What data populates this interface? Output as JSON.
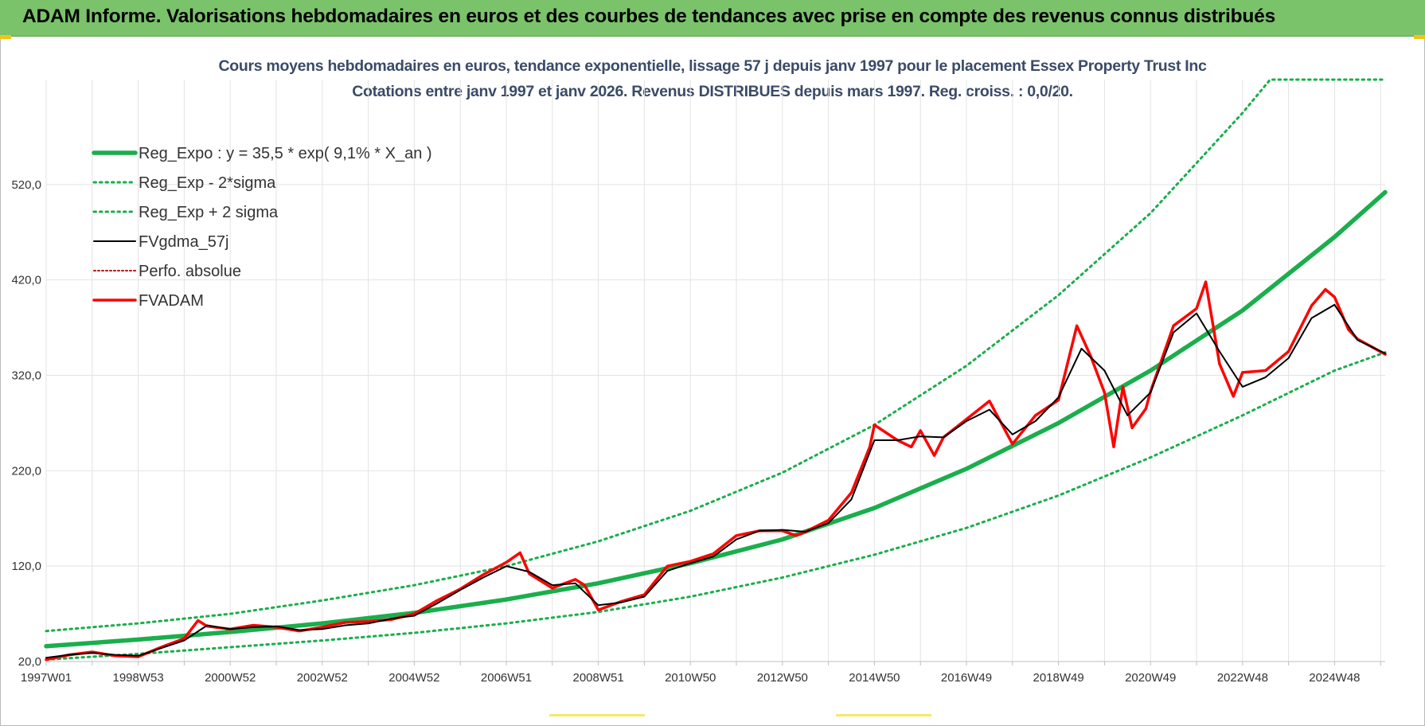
{
  "header": {
    "title": "ADAM Informe. Valorisations hebdomadaires en euros et des courbes de tendances avec prise en compte des revenus connus distribués"
  },
  "colors": {
    "header_bg": "#7ac36a",
    "reg_green": "#1aae4c",
    "sigma_green": "#1aae4c",
    "fvgdma": "#000000",
    "perfo": "#c00000",
    "fvadam": "#ff0000",
    "grid": "#e3e3e3"
  },
  "chart_data": {
    "type": "line",
    "title_line1": "Cours moyens hebdomadaires en euros, tendance exponentielle, lissage 57 j depuis janv 1997 pour le placement Essex Property Trust Inc",
    "title_line2": "Cotations entre janv 1997 et janv 2026. Revenus DISTRIBUES depuis mars 1997.  Reg. croiss. : 0,0/20.",
    "xlim": [
      1997.0,
      2026.1
    ],
    "ylim": [
      20,
      630
    ],
    "grid": true,
    "legend_position": "top-left",
    "y_ticks": [
      {
        "value": 20,
        "label": "20,0"
      },
      {
        "value": 120,
        "label": "120,0"
      },
      {
        "value": 220,
        "label": "220,0"
      },
      {
        "value": 320,
        "label": "320,0"
      },
      {
        "value": 420,
        "label": "420,0"
      },
      {
        "value": 520,
        "label": "520,0"
      }
    ],
    "x_ticks": [
      {
        "value": 1997.0,
        "label": "1997W01"
      },
      {
        "value": 1999.0,
        "label": "1998W53"
      },
      {
        "value": 2001.0,
        "label": "2000W52"
      },
      {
        "value": 2003.0,
        "label": "2002W52"
      },
      {
        "value": 2005.0,
        "label": "2004W52"
      },
      {
        "value": 2007.0,
        "label": "2006W51"
      },
      {
        "value": 2009.0,
        "label": "2008W51"
      },
      {
        "value": 2011.0,
        "label": "2010W50"
      },
      {
        "value": 2013.0,
        "label": "2012W50"
      },
      {
        "value": 2015.0,
        "label": "2014W50"
      },
      {
        "value": 2017.0,
        "label": "2016W49"
      },
      {
        "value": 2019.0,
        "label": "2018W49"
      },
      {
        "value": 2021.0,
        "label": "2020W49"
      },
      {
        "value": 2023.0,
        "label": "2022W48"
      },
      {
        "value": 2025.0,
        "label": "2024W48"
      }
    ],
    "series": [
      {
        "name": "Reg_Expo : y = 35,5 * exp( 9,1% *  X_an )",
        "style": "solid-thick",
        "x": [
          1997.0,
          1999.0,
          2001.0,
          2003.0,
          2005.0,
          2007.0,
          2009.0,
          2011.0,
          2013.0,
          2015.0,
          2017.0,
          2019.0,
          2021.0,
          2023.0,
          2025.0,
          2026.1
        ],
        "values": [
          36,
          43,
          51,
          60,
          71,
          85,
          102,
          123,
          148,
          181,
          222,
          270,
          325,
          388,
          465,
          512
        ]
      },
      {
        "name": "Reg_Exp - 2*sigma",
        "style": "dotted",
        "x": [
          1997.0,
          1999.0,
          2001.0,
          2003.0,
          2005.0,
          2007.0,
          2009.0,
          2011.0,
          2013.0,
          2015.0,
          2017.0,
          2019.0,
          2021.0,
          2023.0,
          2025.0,
          2026.1
        ],
        "values": [
          22,
          28,
          35,
          42,
          50,
          60,
          72,
          88,
          108,
          132,
          160,
          194,
          234,
          278,
          325,
          344
        ]
      },
      {
        "name": "Reg_Exp + 2 sigma",
        "style": "dotted",
        "x": [
          1997.0,
          1999.0,
          2001.0,
          2003.0,
          2005.0,
          2007.0,
          2009.0,
          2011.0,
          2013.0,
          2015.0,
          2017.0,
          2019.0,
          2021.0,
          2023.0,
          2023.6,
          2026.1
        ],
        "values": [
          52,
          60,
          70,
          84,
          100,
          120,
          146,
          178,
          218,
          268,
          330,
          404,
          490,
          595,
          630,
          630
        ]
      },
      {
        "name": "FVgdma_57j",
        "style": "solid-thin",
        "x": [
          1997.0,
          1997.5,
          1998.0,
          1998.5,
          1999.0,
          1999.5,
          2000.0,
          2000.5,
          2001.0,
          2001.5,
          2002.0,
          2002.5,
          2003.0,
          2003.5,
          2004.0,
          2004.5,
          2005.0,
          2005.5,
          2006.0,
          2006.5,
          2007.0,
          2007.5,
          2008.0,
          2008.5,
          2009.0,
          2009.5,
          2010.0,
          2010.5,
          2011.0,
          2011.5,
          2012.0,
          2012.5,
          2013.0,
          2013.5,
          2014.0,
          2014.5,
          2015.0,
          2015.5,
          2016.0,
          2016.5,
          2017.0,
          2017.5,
          2018.0,
          2018.5,
          2019.0,
          2019.5,
          2020.0,
          2020.5,
          2021.0,
          2021.5,
          2022.0,
          2022.5,
          2023.0,
          2023.5,
          2024.0,
          2024.5,
          2025.0,
          2025.5,
          2026.1
        ],
        "values": [
          24,
          27,
          29,
          27,
          26,
          34,
          42,
          58,
          54,
          56,
          57,
          53,
          54,
          58,
          60,
          65,
          68,
          81,
          95,
          108,
          120,
          114,
          100,
          102,
          79,
          82,
          88,
          115,
          123,
          130,
          148,
          157,
          158,
          156,
          165,
          190,
          252,
          252,
          256,
          255,
          272,
          284,
          258,
          272,
          297,
          348,
          325,
          278,
          302,
          365,
          385,
          345,
          308,
          318,
          338,
          380,
          394,
          357,
          343
        ]
      },
      {
        "name": "Perfo. absolue",
        "style": "dotted-thin",
        "x": [],
        "values": []
      },
      {
        "name": "FVADAM",
        "style": "solid-medium",
        "x": [
          1997.0,
          1997.5,
          1998.0,
          1998.5,
          1999.0,
          1999.5,
          2000.0,
          2000.3,
          2000.5,
          2001.0,
          2001.5,
          2002.0,
          2002.5,
          2003.0,
          2003.5,
          2004.0,
          2004.5,
          2005.0,
          2005.5,
          2006.0,
          2006.5,
          2007.0,
          2007.3,
          2007.5,
          2008.0,
          2008.5,
          2008.7,
          2009.0,
          2009.5,
          2010.0,
          2010.5,
          2011.0,
          2011.5,
          2012.0,
          2012.5,
          2013.0,
          2013.3,
          2013.5,
          2014.0,
          2014.5,
          2014.9,
          2015.0,
          2015.5,
          2015.8,
          2016.0,
          2016.3,
          2016.5,
          2017.0,
          2017.5,
          2018.0,
          2018.5,
          2019.0,
          2019.4,
          2019.7,
          2020.0,
          2020.2,
          2020.4,
          2020.6,
          2020.9,
          2021.0,
          2021.5,
          2022.0,
          2022.2,
          2022.5,
          2022.8,
          2023.0,
          2023.5,
          2024.0,
          2024.5,
          2024.8,
          2025.0,
          2025.3,
          2025.5,
          2025.8,
          2026.1
        ],
        "values": [
          22,
          27,
          30,
          26,
          25,
          35,
          44,
          63,
          57,
          54,
          58,
          56,
          52,
          56,
          61,
          62,
          64,
          70,
          84,
          96,
          111,
          124,
          134,
          112,
          97,
          106,
          100,
          74,
          83,
          90,
          120,
          125,
          133,
          152,
          157,
          157,
          152,
          156,
          168,
          197,
          245,
          268,
          252,
          245,
          262,
          236,
          255,
          274,
          293,
          248,
          278,
          294,
          372,
          340,
          302,
          245,
          308,
          265,
          285,
          303,
          372,
          390,
          418,
          332,
          298,
          323,
          325,
          345,
          393,
          410,
          402,
          368,
          358,
          350,
          342
        ]
      }
    ]
  }
}
